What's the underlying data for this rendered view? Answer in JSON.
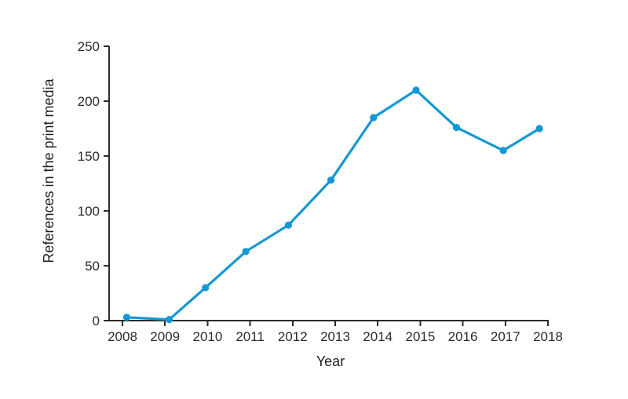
{
  "figure": {
    "background": "#ffffff"
  },
  "chart_data": {
    "type": "line",
    "title": "",
    "xlabel": "Year",
    "ylabel": "References in the print media",
    "categories": [
      "2008",
      "2009",
      "2010",
      "2011",
      "2012",
      "2013",
      "2014",
      "2015",
      "2016",
      "2017",
      "2018"
    ],
    "values": [
      3,
      1,
      30,
      63,
      87,
      128,
      185,
      210,
      176,
      155,
      175
    ],
    "x_plot_positions": [
      2008.1,
      2009.1,
      2009.95,
      2010.9,
      2011.9,
      2012.9,
      2013.9,
      2014.9,
      2015.85,
      2016.95,
      2017.8
    ],
    "y_ticks": [
      0,
      50,
      100,
      150,
      200,
      250
    ],
    "ylim": [
      0,
      250
    ],
    "xlim": [
      2007.69,
      2018
    ],
    "grid": false,
    "legend": false,
    "marker": "circle",
    "line_color": "#1498d5",
    "axis_color": "#2b2b2b",
    "series": [
      {
        "name": "References in the print media"
      }
    ]
  }
}
